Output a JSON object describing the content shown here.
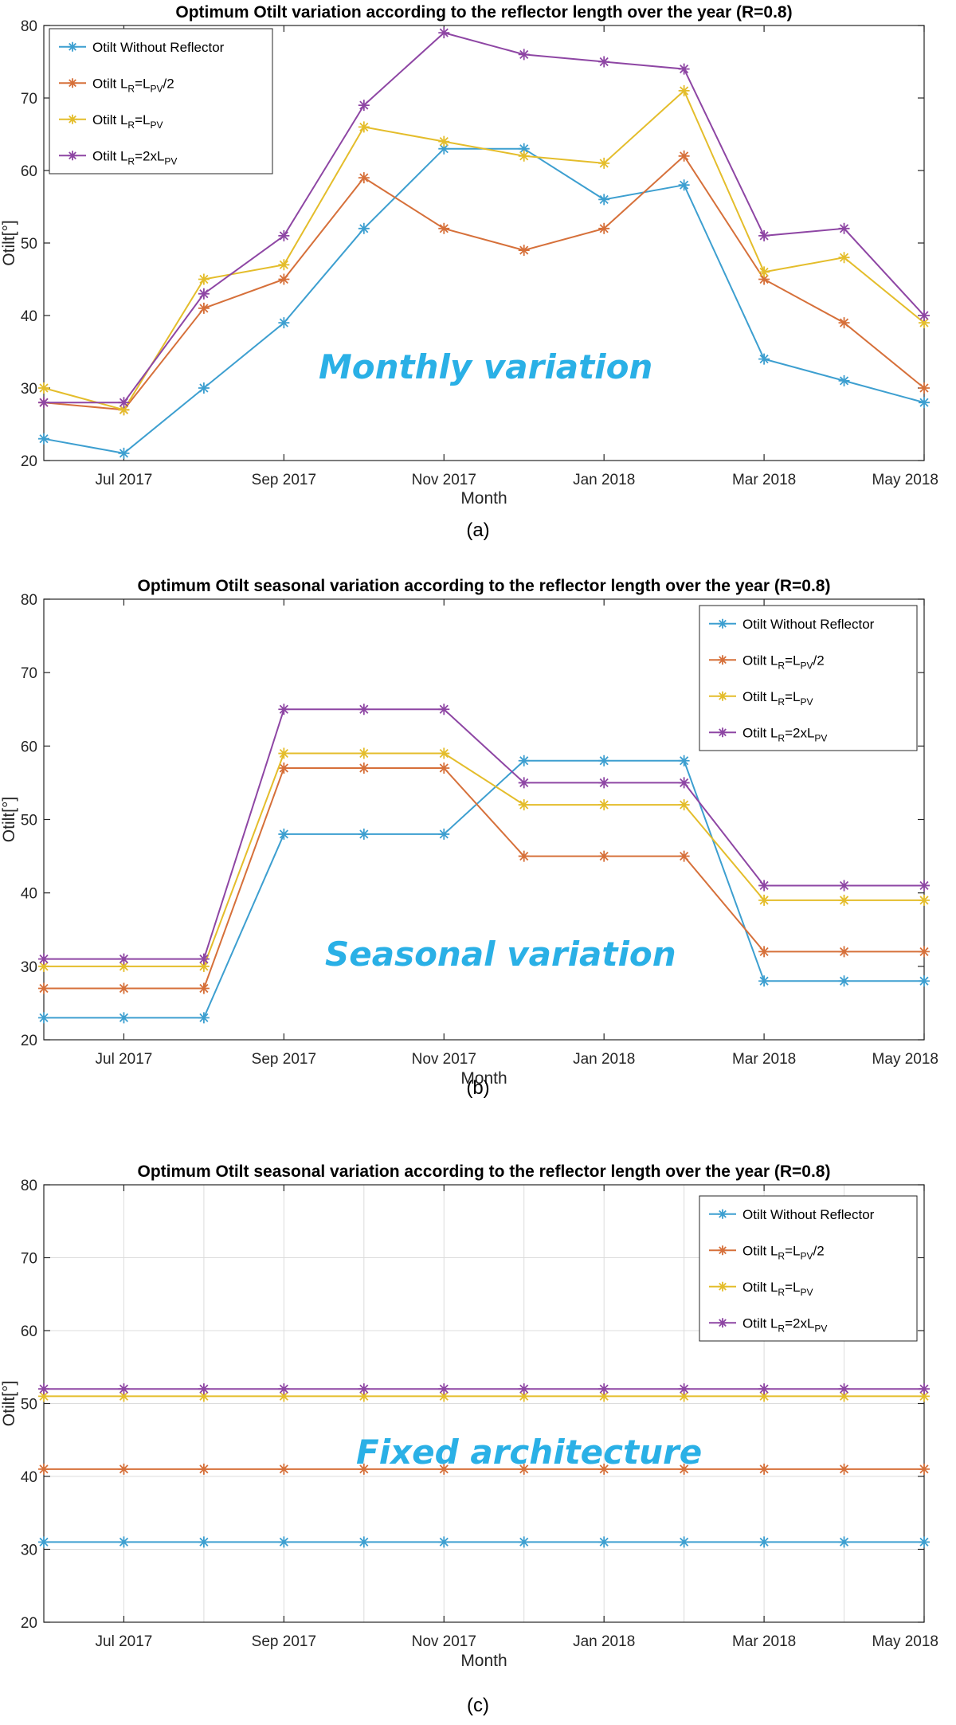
{
  "colors": {
    "series": [
      "#3d9fd0",
      "#d6703a",
      "#e4bd2b",
      "#8e46a4"
    ],
    "annotation": "#2ab0e6",
    "grid": "#dcdcdc",
    "axis": "#262626"
  },
  "chart_data": [
    {
      "type": "line",
      "title": "Optimum Otilt variation according to the reflector length over the year (R=0.8)",
      "xlabel": "Month",
      "ylabel": "Otilt[°]",
      "x": [
        "Jun 2017",
        "Jul 2017",
        "Aug 2017",
        "Sep 2017",
        "Oct 2017",
        "Nov 2017",
        "Dec 2017",
        "Jan 2018",
        "Feb 2018",
        "Mar 2018",
        "Apr 2018",
        "May 2018"
      ],
      "xticks": [
        "Jul 2017",
        "Sep 2017",
        "Nov 2017",
        "Jan 2018",
        "Mar 2018",
        "May 2018"
      ],
      "ylim": [
        20,
        80
      ],
      "yticks": [
        20,
        30,
        40,
        50,
        60,
        70,
        80
      ],
      "grid": false,
      "legend": "top-left",
      "annotation": "Monthly variation",
      "caption": "(a)",
      "series": [
        {
          "name": "Otilt Without Reflector",
          "values": [
            23,
            21,
            30,
            39,
            52,
            63,
            63,
            56,
            58,
            34,
            31,
            28
          ]
        },
        {
          "name": "Otilt LR=LPV/2",
          "values": [
            28,
            27,
            41,
            45,
            59,
            52,
            49,
            52,
            62,
            45,
            39,
            30
          ]
        },
        {
          "name": "Otilt LR=LPV",
          "values": [
            30,
            27,
            45,
            47,
            66,
            64,
            62,
            61,
            71,
            46,
            48,
            39
          ]
        },
        {
          "name": "Otilt LR=2xLPV",
          "values": [
            28,
            28,
            43,
            51,
            69,
            79,
            76,
            75,
            74,
            51,
            52,
            40
          ]
        }
      ]
    },
    {
      "type": "line",
      "title": "Optimum Otilt seasonal variation according to the reflector length over the year (R=0.8)",
      "xlabel": "Month",
      "ylabel": "Otilt[°]",
      "x": [
        "Jun 2017",
        "Jul 2017",
        "Aug 2017",
        "Sep 2017",
        "Oct 2017",
        "Nov 2017",
        "Dec 2017",
        "Jan 2018",
        "Feb 2018",
        "Mar 2018",
        "Apr 2018",
        "May 2018"
      ],
      "xticks": [
        "Jul 2017",
        "Sep 2017",
        "Nov 2017",
        "Jan 2018",
        "Mar 2018",
        "May 2018"
      ],
      "ylim": [
        20,
        80
      ],
      "yticks": [
        20,
        30,
        40,
        50,
        60,
        70,
        80
      ],
      "grid": false,
      "legend": "top-right",
      "annotation": "Seasonal variation",
      "caption": "(b)",
      "series": [
        {
          "name": "Otilt Without Reflector",
          "values": [
            23,
            23,
            23,
            48,
            48,
            48,
            58,
            58,
            58,
            28,
            28,
            28
          ]
        },
        {
          "name": "Otilt LR=LPV/2",
          "values": [
            27,
            27,
            27,
            57,
            57,
            57,
            45,
            45,
            45,
            32,
            32,
            32
          ]
        },
        {
          "name": "Otilt LR=LPV",
          "values": [
            30,
            30,
            30,
            59,
            59,
            59,
            52,
            52,
            52,
            39,
            39,
            39
          ]
        },
        {
          "name": "Otilt LR=2xLPV",
          "values": [
            31,
            31,
            31,
            65,
            65,
            65,
            55,
            55,
            55,
            41,
            41,
            41
          ]
        }
      ]
    },
    {
      "type": "line",
      "title": "Optimum Otilt seasonal variation according to the reflector length over the year (R=0.8)",
      "xlabel": "Month",
      "ylabel": "Otilt[°]",
      "x": [
        "Jun 2017",
        "Jul 2017",
        "Aug 2017",
        "Sep 2017",
        "Oct 2017",
        "Nov 2017",
        "Dec 2017",
        "Jan 2018",
        "Feb 2018",
        "Mar 2018",
        "Apr 2018",
        "May 2018"
      ],
      "xticks": [
        "Jul 2017",
        "Sep 2017",
        "Nov 2017",
        "Jan 2018",
        "Mar 2018",
        "May 2018"
      ],
      "ylim": [
        20,
        80
      ],
      "yticks": [
        20,
        30,
        40,
        50,
        60,
        70,
        80
      ],
      "grid": true,
      "legend": "top-right",
      "annotation": "Fixed architecture",
      "caption": "(c)",
      "series": [
        {
          "name": "Otilt Without Reflector",
          "values": [
            31,
            31,
            31,
            31,
            31,
            31,
            31,
            31,
            31,
            31,
            31,
            31
          ]
        },
        {
          "name": "Otilt LR=LPV/2",
          "values": [
            41,
            41,
            41,
            41,
            41,
            41,
            41,
            41,
            41,
            41,
            41,
            41
          ]
        },
        {
          "name": "Otilt LR=LPV",
          "values": [
            51,
            51,
            51,
            51,
            51,
            51,
            51,
            51,
            51,
            51,
            51,
            51
          ]
        },
        {
          "name": "Otilt LR=2xLPV",
          "values": [
            52,
            52,
            52,
            52,
            52,
            52,
            52,
            52,
            52,
            52,
            52,
            52
          ]
        }
      ]
    }
  ]
}
